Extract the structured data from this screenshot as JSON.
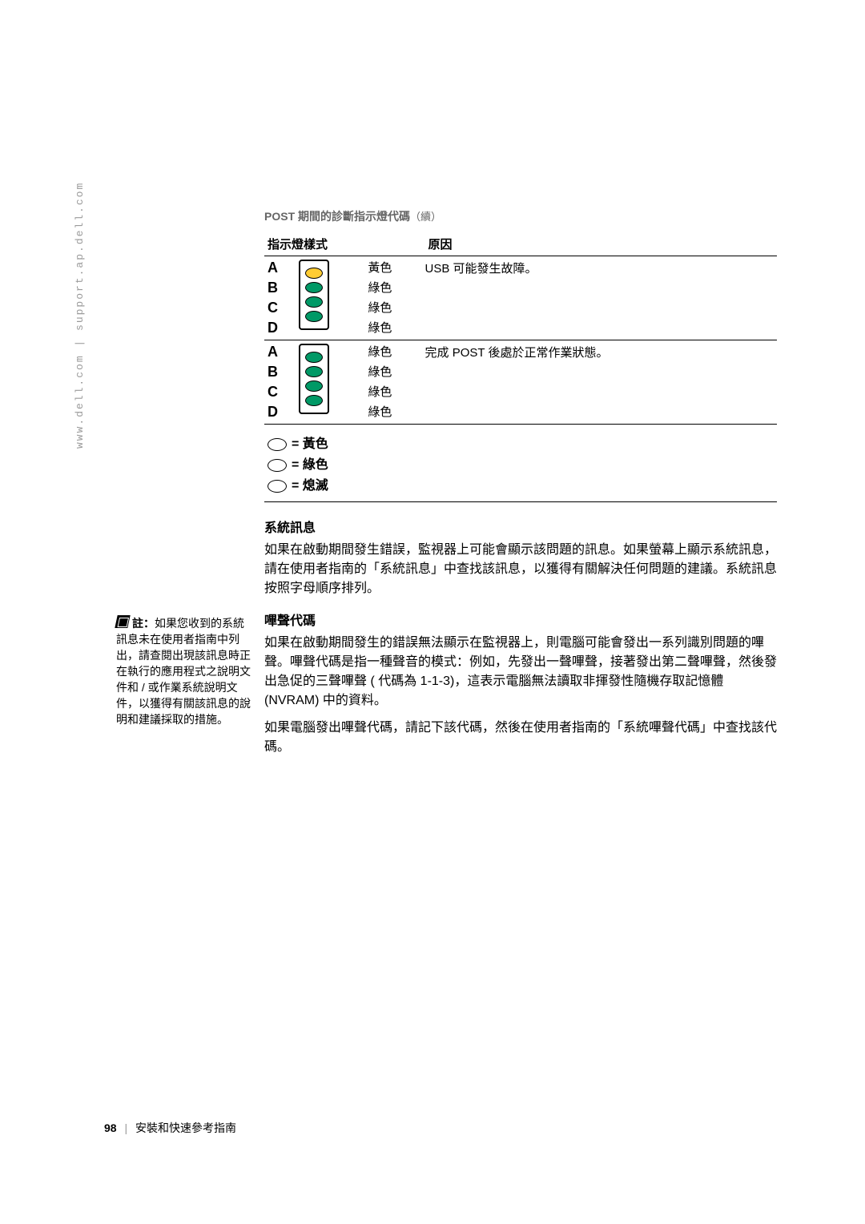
{
  "side_url": "www.dell.com | support.ap.dell.com",
  "caption": {
    "main": "POST 期間的診斷指示燈代碼",
    "cont": "（續）"
  },
  "headers": {
    "pattern": "指示燈樣式",
    "cause": "原因"
  },
  "rows": [
    {
      "labels": [
        "A",
        "B",
        "C",
        "D"
      ],
      "leds": [
        "yellow",
        "green",
        "green",
        "green"
      ],
      "colors": [
        "黃色",
        "綠色",
        "綠色",
        "綠色"
      ],
      "cause": "USB 可能發生故障。"
    },
    {
      "labels": [
        "A",
        "B",
        "C",
        "D"
      ],
      "leds": [
        "green",
        "green",
        "green",
        "green"
      ],
      "colors": [
        "綠色",
        "綠色",
        "綠色",
        "綠色"
      ],
      "cause": "完成 POST 後處於正常作業狀態。"
    }
  ],
  "legend": [
    {
      "cls": "yellow",
      "text": "= 黃色"
    },
    {
      "cls": "green",
      "text": "= 綠色"
    },
    {
      "cls": "off",
      "text": "= 熄滅"
    }
  ],
  "sysmsg": {
    "heading": "系統訊息",
    "para": "如果在啟動期間發生錯誤，監視器上可能會顯示該問題的訊息。如果螢幕上顯示系統訊息，請在使用者指南的「系統訊息」中查找該訊息，以獲得有關解決任何問題的建議。系統訊息按照字母順序排列。"
  },
  "beep": {
    "heading": "嗶聲代碼",
    "para1": "如果在啟動期間發生的錯誤無法顯示在監視器上，則電腦可能會發出一系列識別問題的嗶聲。嗶聲代碼是指一種聲音的模式：例如，先發出一聲嗶聲，接著發出第二聲嗶聲，然後發出急促的三聲嗶聲 ( 代碼為 1-1-3)，這表示電腦無法讀取非揮發性隨機存取記憶體 (NVRAM) 中的資料。",
    "para2": "如果電腦發出嗶聲代碼，請記下該代碼，然後在使用者指南的「系統嗶聲代碼」中查找該代碼。"
  },
  "sidenote": {
    "label": "註：",
    "text": "如果您收到的系統訊息未在使用者指南中列出，請查閱出現該訊息時正在執行的應用程式之說明文件和 / 或作業系統說明文件，以獲得有關該訊息的說明和建議採取的措施。"
  },
  "footer": {
    "page": "98",
    "title": "安裝和快速參考指南"
  }
}
